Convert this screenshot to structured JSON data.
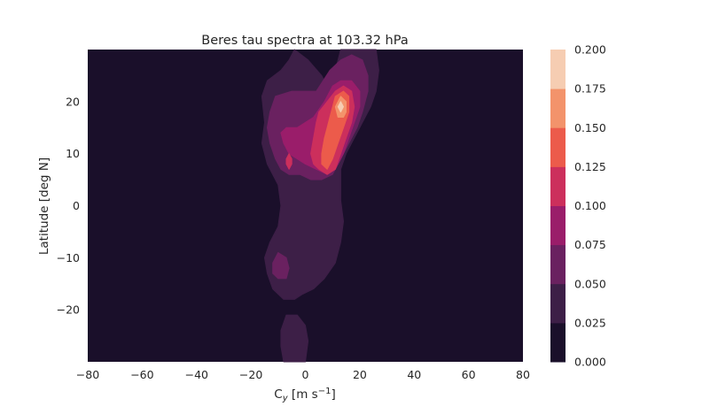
{
  "chart_data": {
    "type": "heatmap",
    "title": "Beres tau spectra at 103.32 hPa",
    "xlabel_main": "C",
    "xlabel_sub": "y",
    "xlabel_units": " [m s",
    "xlabel_exp": "−1",
    "xlabel_close": "]",
    "ylabel": "Latitude [deg N]",
    "xlim": [
      -80,
      80
    ],
    "ylim": [
      -30,
      30
    ],
    "x_ticks": [
      -80,
      -60,
      -40,
      -20,
      0,
      20,
      40,
      60,
      80
    ],
    "x_tick_labels": [
      "−80",
      "−60",
      "−40",
      "−20",
      "0",
      "20",
      "40",
      "60",
      "80"
    ],
    "y_ticks": [
      -20,
      -10,
      0,
      10,
      20
    ],
    "y_tick_labels": [
      "−20",
      "−10",
      "0",
      "10",
      "20"
    ],
    "colorbar": {
      "levels": [
        0.0,
        0.025,
        0.05,
        0.075,
        0.1,
        0.125,
        0.15,
        0.175,
        0.2
      ],
      "labels": [
        "0.000",
        "0.025",
        "0.050",
        "0.075",
        "0.100",
        "0.125",
        "0.150",
        "0.175",
        "0.200"
      ],
      "colors": [
        "#1a0f2a",
        "#3d1f47",
        "#6a2160",
        "#9a1d6a",
        "#cc2f5c",
        "#ec5b4b",
        "#f3936b",
        "#f6cdb2"
      ]
    },
    "contour_regions": [
      {
        "level_index": 1,
        "polygon": [
          [
            -4,
            30
          ],
          [
            1,
            28
          ],
          [
            6,
            25
          ],
          [
            9,
            22
          ],
          [
            11,
            26
          ],
          [
            13,
            30
          ],
          [
            26,
            30
          ],
          [
            27,
            26
          ],
          [
            26,
            22
          ],
          [
            24,
            19
          ],
          [
            21,
            16
          ],
          [
            18,
            13
          ],
          [
            15,
            10
          ],
          [
            13,
            7
          ],
          [
            13,
            4
          ],
          [
            13,
            1
          ],
          [
            14,
            -3
          ],
          [
            13,
            -7
          ],
          [
            11,
            -11
          ],
          [
            7,
            -14
          ],
          [
            3,
            -16
          ],
          [
            -1,
            -17
          ],
          [
            -4,
            -18
          ],
          [
            -8,
            -18
          ],
          [
            -12,
            -16
          ],
          [
            -14,
            -13
          ],
          [
            -15,
            -10
          ],
          [
            -13,
            -7
          ],
          [
            -10,
            -4
          ],
          [
            -9,
            0
          ],
          [
            -10,
            4
          ],
          [
            -14,
            8
          ],
          [
            -16,
            12
          ],
          [
            -15,
            16
          ],
          [
            -16,
            21
          ],
          [
            -14,
            24
          ],
          [
            -9,
            26
          ],
          [
            -6,
            28
          ]
        ]
      },
      {
        "level_index": 1,
        "polygon": [
          [
            -8,
            -30
          ],
          [
            -9,
            -27
          ],
          [
            -9,
            -24
          ],
          [
            -7,
            -21
          ],
          [
            -3,
            -21
          ],
          [
            0,
            -23
          ],
          [
            1,
            -26
          ],
          [
            0,
            -30
          ]
        ]
      },
      {
        "level_index": 2,
        "polygon": [
          [
            -11,
            21
          ],
          [
            -5,
            22
          ],
          [
            4,
            22
          ],
          [
            9,
            26
          ],
          [
            13,
            28
          ],
          [
            17,
            29
          ],
          [
            21,
            28
          ],
          [
            23,
            25
          ],
          [
            23,
            22
          ],
          [
            21,
            18
          ],
          [
            19,
            15
          ],
          [
            16,
            12
          ],
          [
            13,
            9
          ],
          [
            10,
            6
          ],
          [
            6,
            5
          ],
          [
            2,
            5
          ],
          [
            -2,
            6
          ],
          [
            -6,
            6
          ],
          [
            -9,
            7
          ],
          [
            -11,
            9
          ],
          [
            -13,
            12
          ],
          [
            -14,
            15
          ],
          [
            -13,
            18
          ]
        ]
      },
      {
        "level_index": 2,
        "polygon": [
          [
            -10,
            -9
          ],
          [
            -7,
            -10
          ],
          [
            -6,
            -12
          ],
          [
            -7,
            -14
          ],
          [
            -10,
            -14
          ],
          [
            -12,
            -13
          ],
          [
            -12,
            -11
          ]
        ]
      },
      {
        "level_index": 3,
        "polygon": [
          [
            -7,
            15
          ],
          [
            -3,
            15
          ],
          [
            3,
            17
          ],
          [
            7,
            20
          ],
          [
            10,
            23
          ],
          [
            13,
            24
          ],
          [
            17,
            24
          ],
          [
            20,
            22
          ],
          [
            20,
            19
          ],
          [
            18,
            16
          ],
          [
            16,
            13
          ],
          [
            14,
            10
          ],
          [
            11,
            7
          ],
          [
            8,
            6
          ],
          [
            4,
            7
          ],
          [
            0,
            8
          ],
          [
            -3,
            9
          ],
          [
            -6,
            10
          ],
          [
            -8,
            12
          ],
          [
            -9,
            14
          ]
        ]
      },
      {
        "level_index": 4,
        "polygon": [
          [
            5,
            18
          ],
          [
            8,
            20
          ],
          [
            11,
            22
          ],
          [
            14,
            23
          ],
          [
            17,
            22
          ],
          [
            18,
            19
          ],
          [
            17,
            16
          ],
          [
            15,
            13
          ],
          [
            13,
            10
          ],
          [
            11,
            7
          ],
          [
            8,
            6
          ],
          [
            5,
            7
          ],
          [
            3,
            8
          ],
          [
            2,
            10
          ],
          [
            3,
            13
          ],
          [
            4,
            16
          ]
        ]
      },
      {
        "level_index": 4,
        "polygon": [
          [
            -6,
            10
          ],
          [
            -5,
            9
          ],
          [
            -5,
            8
          ],
          [
            -6,
            7
          ],
          [
            -7,
            8
          ],
          [
            -7,
            9
          ]
        ]
      },
      {
        "level_index": 5,
        "polygon": [
          [
            9,
            17
          ],
          [
            11,
            21
          ],
          [
            14,
            22
          ],
          [
            16,
            21
          ],
          [
            16,
            18
          ],
          [
            14,
            15
          ],
          [
            12,
            12
          ],
          [
            10,
            9
          ],
          [
            8,
            7
          ],
          [
            6,
            8
          ],
          [
            6,
            10
          ],
          [
            7,
            13
          ],
          [
            8,
            15
          ]
        ]
      },
      {
        "level_index": 6,
        "polygon": [
          [
            11,
            19
          ],
          [
            13,
            21
          ],
          [
            15,
            20
          ],
          [
            15,
            18
          ],
          [
            14,
            17
          ],
          [
            12,
            17
          ]
        ]
      },
      {
        "level_index": 7,
        "polygon": [
          [
            12,
            19
          ],
          [
            13,
            20
          ],
          [
            14,
            19
          ],
          [
            13,
            18
          ]
        ]
      }
    ]
  }
}
